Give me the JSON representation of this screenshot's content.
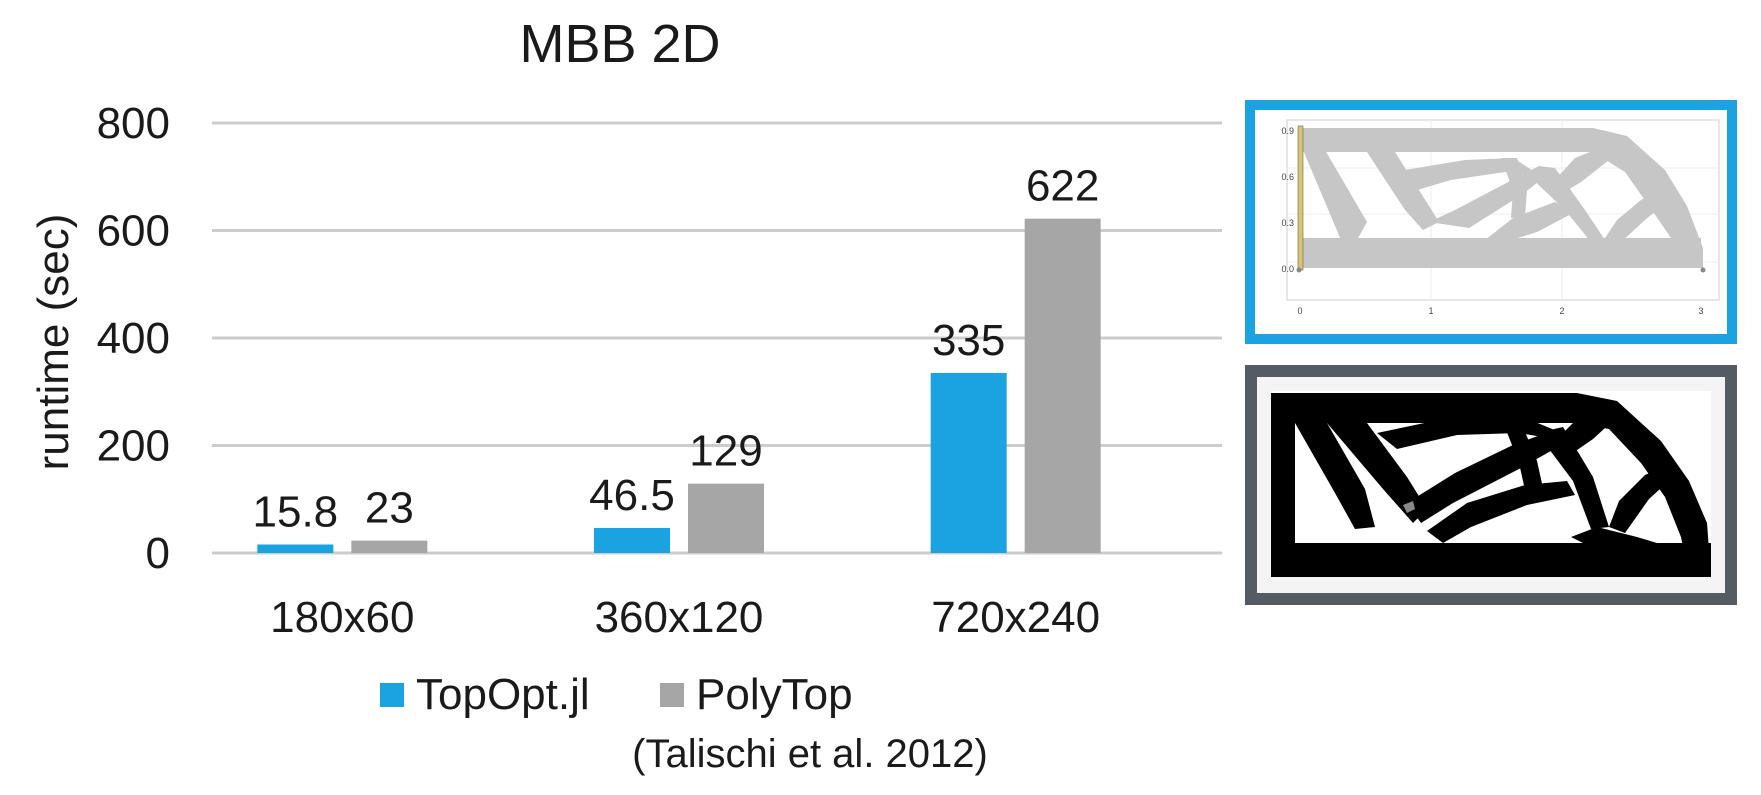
{
  "chart_data": {
    "type": "bar",
    "title": "MBB 2D",
    "ylabel": "runtime (sec)",
    "xlabel": "",
    "ylim": [
      0,
      800
    ],
    "yticks": [
      0,
      200,
      400,
      600,
      800
    ],
    "categories": [
      "180x60",
      "360x120",
      "720x240"
    ],
    "series": [
      {
        "name": "TopOpt.jl",
        "values": [
          15.8,
          46.5,
          335
        ],
        "labels": [
          "15.8",
          "46.5",
          "335"
        ],
        "color": "#1aa3e0"
      },
      {
        "name": "PolyTop",
        "values": [
          23,
          129,
          622
        ],
        "labels": [
          "23",
          "129",
          "622"
        ],
        "color": "#a6a6a6"
      }
    ],
    "grid": true,
    "legend_position": "bottom"
  },
  "caption": "(Talischi et al. 2012)",
  "inset_plot": {
    "x_ticks": [
      "0",
      "1",
      "2",
      "3"
    ],
    "y_ticks": [
      "0.0",
      "0.3",
      "0.6",
      "0.9"
    ],
    "frame_color": "#1aa3e0"
  },
  "inset_image": {
    "frame_color": "#545b62"
  }
}
